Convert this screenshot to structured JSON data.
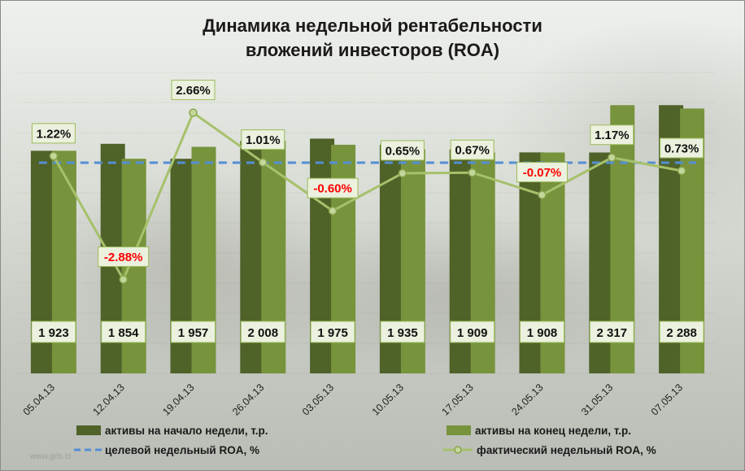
{
  "watermark": "www.grls.cl",
  "colors": {
    "bar_start": "#4f6228",
    "bar_end": "#77933c",
    "target_line": "#558ed5",
    "roa_line": "#a6c16b",
    "label_bg": "#ebf1de",
    "negative": "#ff0000",
    "positive": "#111111"
  },
  "chart_data": {
    "type": "bar",
    "title_lines": [
      "Динамика недельной рентабельности",
      "вложений  инвесторов (ROA)"
    ],
    "categories": [
      "05.04.13",
      "12.04.13",
      "19.04.13",
      "26.04.13",
      "03.05.13",
      "10.05.13",
      "17.05.13",
      "24.05.13",
      "31.05.13",
      "07.05.13"
    ],
    "series": [
      {
        "name": "активы на начало  недели, т.р.",
        "kind": "bar",
        "values": [
          1923,
          1983,
          1854,
          2008,
          2028,
          1975,
          1935,
          1909,
          1908,
          2317
        ]
      },
      {
        "name": "активы на конец недели, т.р.",
        "kind": "bar",
        "values": [
          1923,
          1854,
          1957,
          2008,
          1975,
          1935,
          1909,
          1908,
          2317,
          2288
        ]
      },
      {
        "name": "целевой недельный ROA, %",
        "kind": "line",
        "values": [
          1.0,
          1.0,
          1.0,
          1.0,
          1.0,
          1.0,
          1.0,
          1.0,
          1.0,
          1.0
        ]
      },
      {
        "name": "фактический недельный ROA, %",
        "kind": "line",
        "values": [
          1.22,
          -2.88,
          2.66,
          1.01,
          -0.6,
          0.65,
          0.67,
          -0.07,
          1.17,
          0.73
        ]
      }
    ],
    "bar_labels": [
      "1 923",
      "1 854",
      "1 957",
      "2 008",
      "1 975",
      "1 935",
      "1 909",
      "1 908",
      "2 317",
      "2 288"
    ],
    "roa_labels": [
      "1.22%",
      "-2.88%",
      "2.66%",
      "1.01%",
      "-0.60%",
      "0.65%",
      "0.67%",
      "-0.07%",
      "1.17%",
      "0.73%"
    ],
    "legend": [
      {
        "label": "активы на начало  недели, т.р.",
        "type": "bar-dark"
      },
      {
        "label": "активы на конец недели, т.р.",
        "type": "bar-light"
      },
      {
        "label": "целевой недельный ROA, %",
        "type": "dashed"
      },
      {
        "label": "фактический недельный ROA, %",
        "type": "line-marker"
      }
    ],
    "assets_axis": {
      "min": 0,
      "max": 2600
    },
    "roa_axis": {
      "min": -6,
      "max": 4
    },
    "grid": true,
    "legend_position": "bottom"
  }
}
